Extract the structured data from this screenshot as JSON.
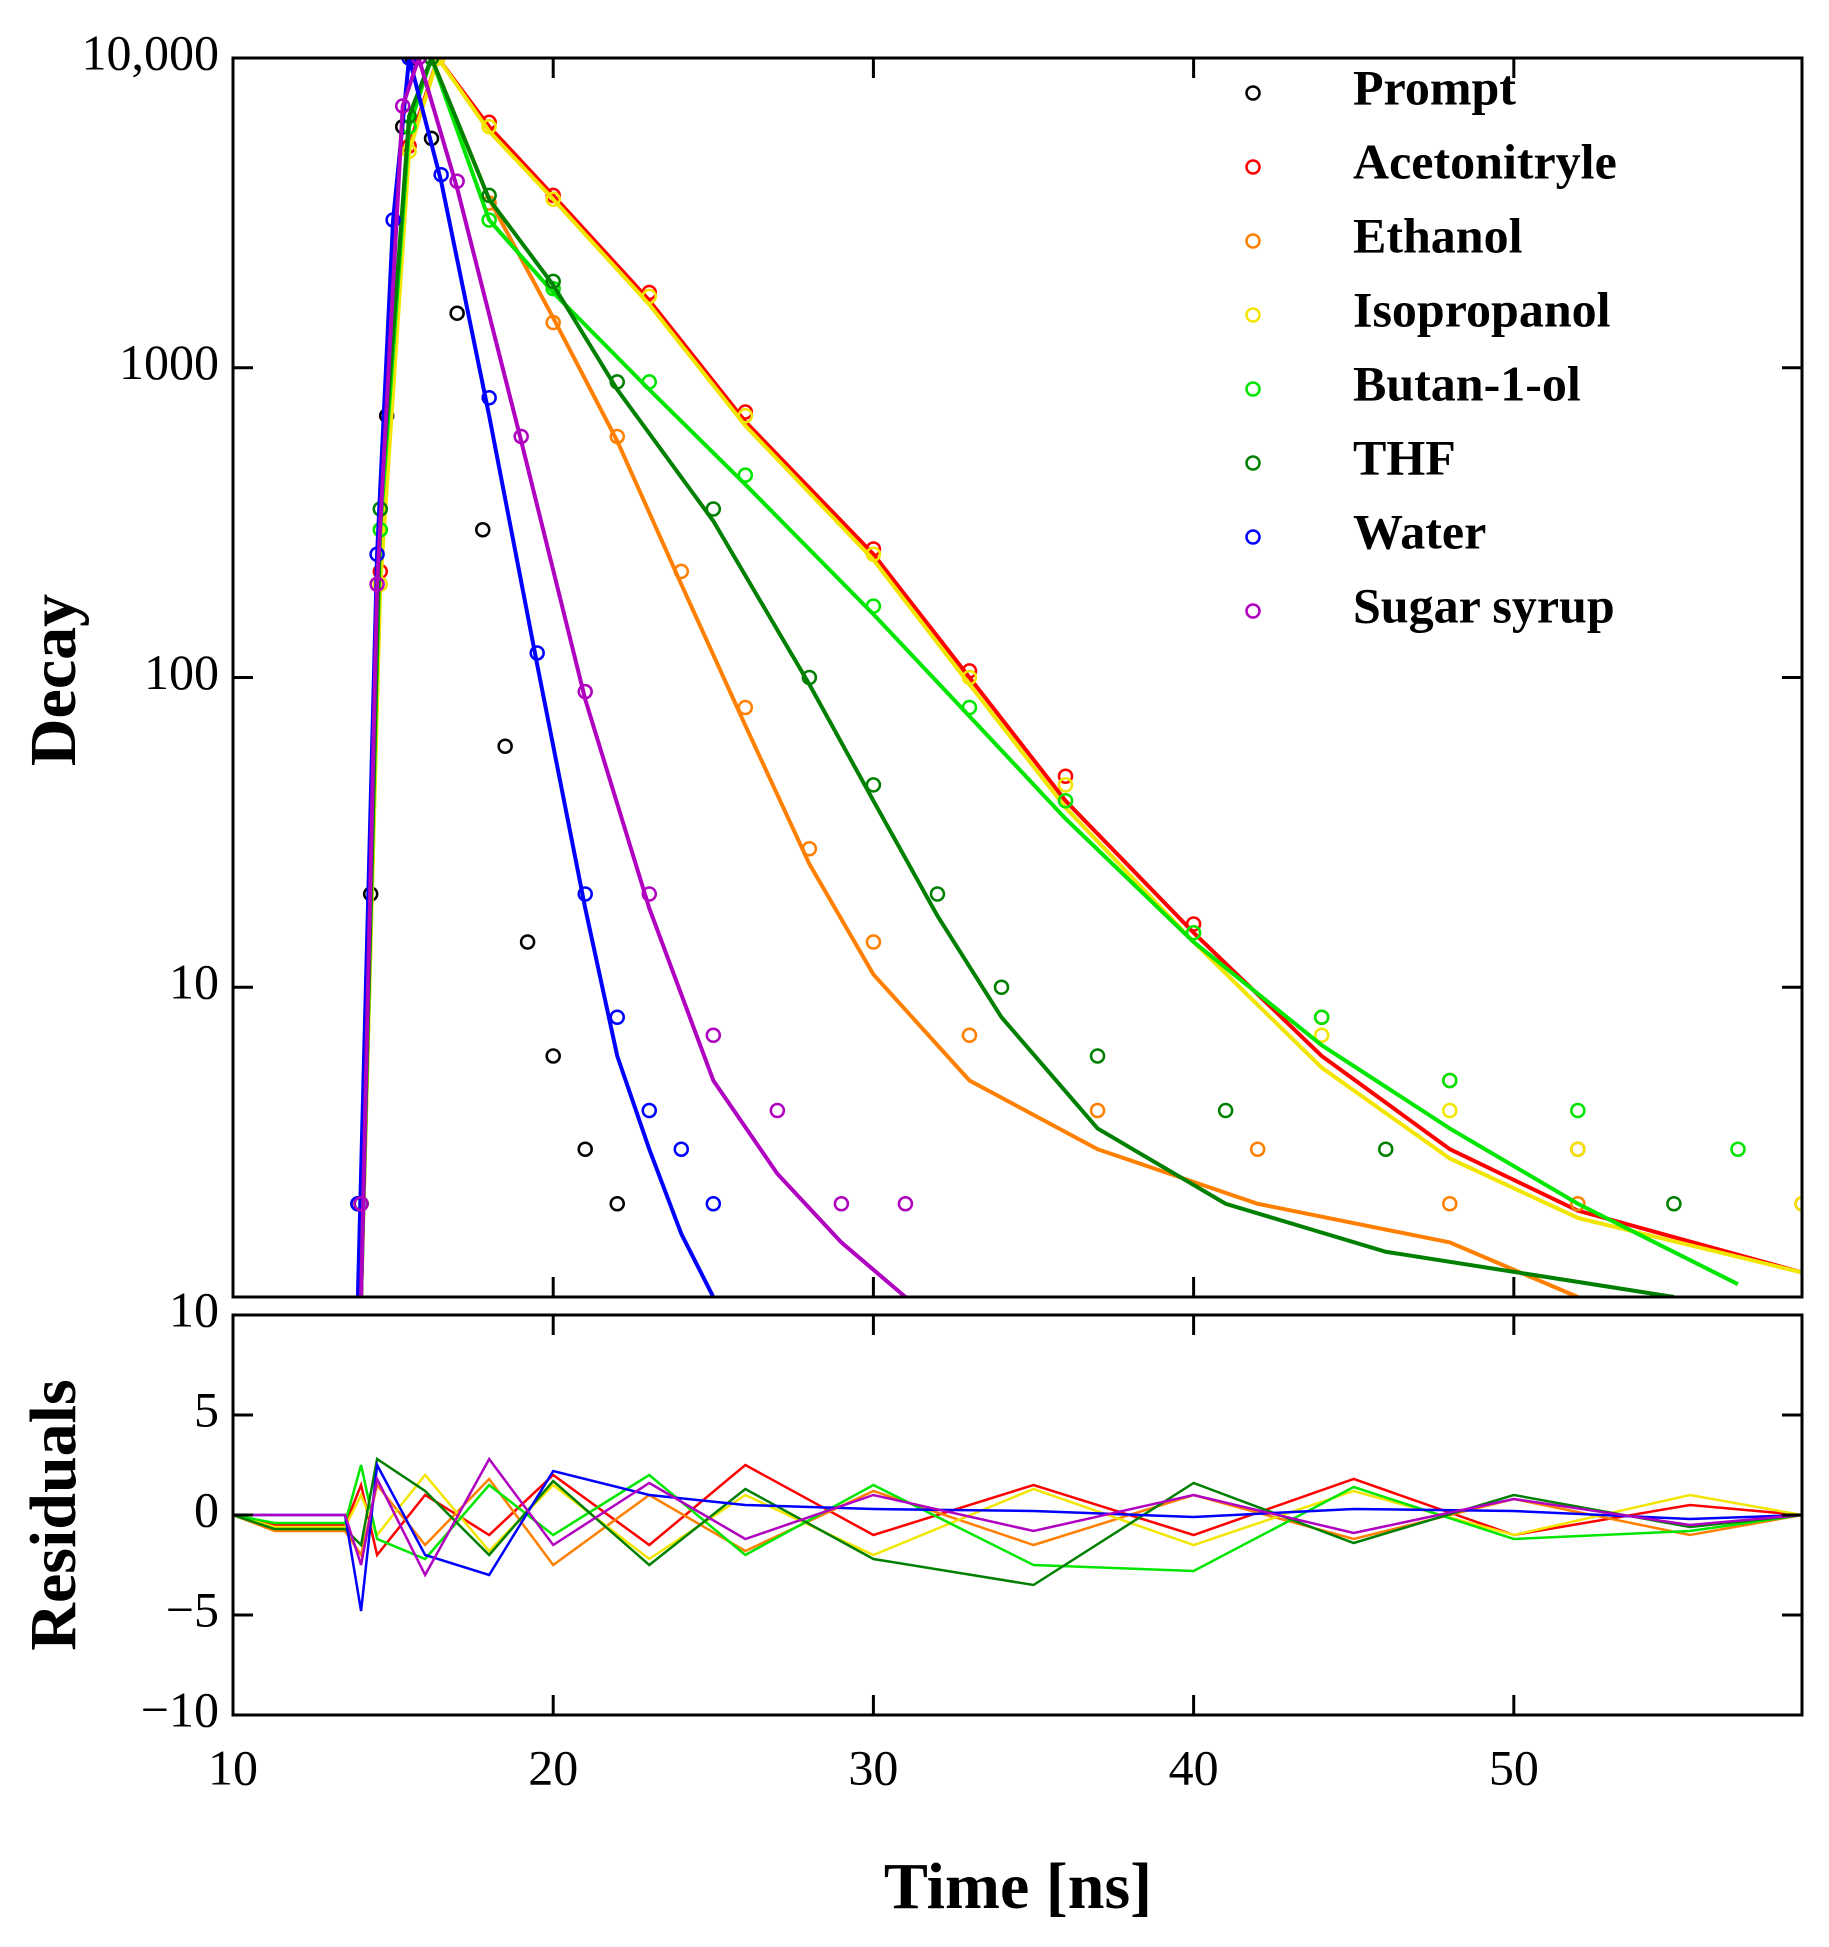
{
  "chart_data": [
    {
      "type": "scatter",
      "ylabel": "Decay",
      "yscale": "log",
      "ylim": [
        1,
        10000
      ],
      "yticks": [
        10,
        100,
        1000,
        {
          "value": 10000,
          "label": "10,000"
        }
      ],
      "xlim": [
        10,
        59
      ],
      "legend": "upper right",
      "series": [
        {
          "name": "Prompt",
          "color": "#000000",
          "x": [
            13.9,
            14.3,
            14.8,
            15.3,
            15.6,
            16.2,
            17,
            17.8,
            18.5,
            19.2,
            20,
            21,
            22
          ],
          "values": [
            2,
            20,
            700,
            6000,
            10000,
            5500,
            1500,
            300,
            60,
            14,
            6,
            3,
            2
          ]
        },
        {
          "name": "Acetonitryle",
          "color": "#ff0000",
          "x": [
            14,
            14.6,
            15.5,
            16.4,
            18,
            20,
            23,
            26,
            30,
            33,
            36,
            40,
            44,
            48,
            52,
            59
          ],
          "values": [
            2,
            220,
            5200,
            10000,
            6200,
            3600,
            1750,
            720,
            260,
            105,
            48,
            16,
            8,
            5,
            3,
            2
          ],
          "fit": [
            1,
            220,
            5200,
            10000,
            6000,
            3600,
            1650,
            670,
            250,
            100,
            40,
            15,
            6,
            3,
            1.9,
            1.2
          ]
        },
        {
          "name": "Ethanol",
          "color": "#ff8000",
          "x": [
            14,
            14.6,
            15.5,
            16.2,
            18,
            20,
            22,
            24,
            26,
            28,
            30,
            33,
            37,
            42,
            48,
            52
          ],
          "values": [
            2,
            300,
            6000,
            10000,
            3400,
            1400,
            600,
            220,
            80,
            28,
            14,
            7,
            4,
            3,
            2,
            2
          ],
          "fit": [
            1,
            300,
            6000,
            10000,
            3500,
            1450,
            580,
            200,
            70,
            25,
            11,
            5,
            3,
            2,
            1.5,
            1
          ]
        },
        {
          "name": "Isopropanol",
          "color": "#f2e600",
          "x": [
            14,
            14.6,
            15.5,
            16.4,
            18,
            20,
            23,
            26,
            30,
            33,
            36,
            40,
            44,
            48,
            52,
            59
          ],
          "values": [
            2,
            200,
            5000,
            10000,
            6000,
            3500,
            1700,
            700,
            250,
            100,
            45,
            15,
            7,
            4,
            3,
            2
          ],
          "fit": [
            1,
            200,
            5000,
            10000,
            5800,
            3500,
            1600,
            650,
            240,
            95,
            38,
            14,
            5.5,
            2.8,
            1.8,
            1.2
          ]
        },
        {
          "name": "Butan-1-ol",
          "color": "#00e600",
          "x": [
            14,
            14.6,
            15.5,
            16.2,
            18,
            20,
            23,
            26,
            30,
            33,
            36,
            40,
            44,
            48,
            52,
            57
          ],
          "values": [
            2,
            300,
            6000,
            10000,
            3000,
            1800,
            900,
            450,
            170,
            80,
            40,
            15,
            8,
            5,
            4,
            3
          ],
          "fit": [
            1,
            300,
            6000,
            10000,
            3000,
            1750,
            850,
            420,
            160,
            75,
            35,
            14,
            6.5,
            3.5,
            2,
            1.1
          ]
        },
        {
          "name": "THF",
          "color": "#008000",
          "x": [
            14,
            14.6,
            15.5,
            16.2,
            18,
            20,
            22,
            25,
            28,
            30,
            32,
            34,
            37,
            41,
            46,
            55
          ],
          "values": [
            2,
            350,
            6500,
            10000,
            3600,
            1900,
            900,
            350,
            100,
            45,
            20,
            10,
            6,
            4,
            3,
            2
          ],
          "fit": [
            1,
            350,
            6500,
            10000,
            3500,
            1850,
            850,
            320,
            95,
            40,
            17,
            8,
            3.5,
            2,
            1.4,
            1
          ]
        },
        {
          "name": "Water",
          "color": "#0000ff",
          "x": [
            13.9,
            14.5,
            15,
            15.5,
            16.5,
            18,
            19.5,
            21,
            22,
            23,
            24,
            25
          ],
          "values": [
            2,
            250,
            3000,
            10000,
            4200,
            800,
            120,
            20,
            8,
            4,
            3,
            2
          ],
          "fit": [
            1,
            250,
            3000,
            10000,
            4000,
            700,
            110,
            18,
            6,
            3,
            1.6,
            1
          ]
        },
        {
          "name": "Sugar syrup",
          "color": "#b000c0",
          "x": [
            14,
            14.5,
            15.3,
            15.8,
            17,
            19,
            21,
            23,
            25,
            27,
            29,
            31
          ],
          "values": [
            2,
            200,
            7000,
            10000,
            4000,
            600,
            90,
            20,
            7,
            4,
            2,
            2
          ],
          "fit": [
            1,
            200,
            7000,
            10000,
            3800,
            580,
            85,
            18,
            5,
            2.5,
            1.5,
            1
          ]
        }
      ]
    },
    {
      "type": "line",
      "ylabel": "Residuals",
      "xlabel": "Time [ns]",
      "ylim": [
        -10,
        10
      ],
      "yticks": [
        {
          "value": -10,
          "label": "−10"
        },
        {
          "value": -5,
          "label": "−5"
        },
        0,
        5,
        10
      ],
      "xlim": [
        10,
        59
      ],
      "xticks": [
        10,
        20,
        30,
        40,
        50
      ],
      "x": [
        10,
        11.3,
        13.5,
        14,
        14.5,
        16,
        18,
        20,
        23,
        26,
        30,
        35,
        40,
        45,
        50,
        55.5,
        59
      ],
      "series": [
        {
          "name": "Acetonitryle",
          "color": "#ff0000",
          "values": [
            0,
            -0.5,
            -0.5,
            1.5,
            -2,
            1,
            -1,
            2,
            -1.5,
            2.5,
            -1,
            1.5,
            -1,
            1.8,
            -1,
            0.5,
            0
          ]
        },
        {
          "name": "Ethanol",
          "color": "#ff8000",
          "values": [
            0,
            -0.8,
            -0.8,
            -2,
            1.5,
            -1.5,
            1.8,
            -2.5,
            1,
            -1.8,
            1.2,
            -1.5,
            1,
            -1.2,
            0.8,
            -1,
            0
          ]
        },
        {
          "name": "Isopropanol",
          "color": "#f2e600",
          "values": [
            0,
            -0.6,
            -0.6,
            1,
            -1,
            2,
            -1.8,
            1.5,
            -2.2,
            1,
            -2,
            1.3,
            -1.5,
            1.2,
            -1,
            1,
            0
          ]
        },
        {
          "name": "Butan-1-ol",
          "color": "#00e600",
          "values": [
            0,
            -0.4,
            -0.4,
            2.5,
            -1.2,
            -2.2,
            1.5,
            -1,
            2,
            -2,
            1.5,
            -2.5,
            -2.8,
            1.4,
            -1.2,
            -0.8,
            0
          ]
        },
        {
          "name": "THF",
          "color": "#008000",
          "values": [
            0,
            -0.7,
            -0.7,
            -1.5,
            2.8,
            1.2,
            -2,
            1.7,
            -2.5,
            1.3,
            -2.2,
            -3.5,
            1.6,
            -1.4,
            1,
            -0.6,
            0
          ]
        },
        {
          "name": "Water",
          "color": "#0000ff",
          "values": [
            0,
            0,
            0,
            -4.8,
            2.5,
            -2,
            -3,
            2.2,
            1,
            0.5,
            0.3,
            0.2,
            -0.1,
            0.3,
            0.2,
            -0.2,
            0
          ]
        },
        {
          "name": "Sugar syrup",
          "color": "#b000c0",
          "values": [
            0,
            0,
            0,
            -2.5,
            1.8,
            -3,
            2.8,
            -1.5,
            1.6,
            -1.2,
            1,
            -0.8,
            1,
            -0.9,
            0.8,
            -0.5,
            0
          ]
        }
      ]
    }
  ]
}
